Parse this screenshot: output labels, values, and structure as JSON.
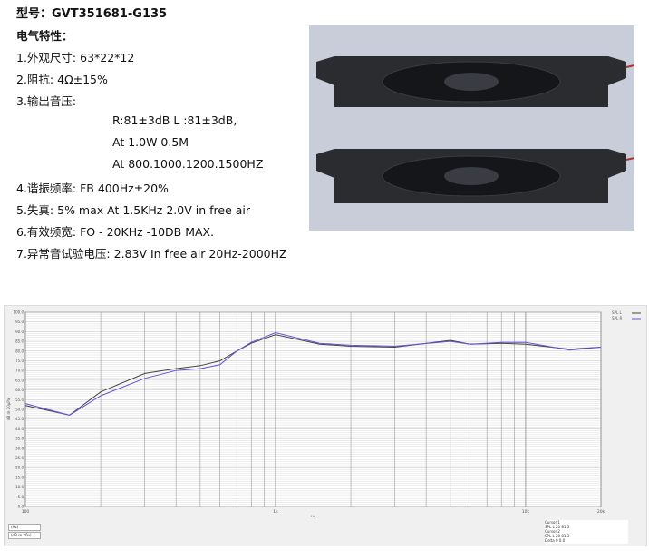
{
  "spec": {
    "model": "型号：GVT351681-G135",
    "heading": "电气特性：",
    "items": [
      "1.外观尺寸: 63*22*12",
      "2.阻抗: 4Ω±15%",
      "3.输出音压:",
      "R:81±3dB   L :81±3dB,",
      "At 1.0W 0.5M",
      "At 800.1000.1200.1500HZ",
      "4.谐振频率: FB 400Hz±20%",
      "5.失真: 5% max At 1.5KHz 2.0V in free air",
      "6.有效频宽: FO - 20KHz -10DB MAX.",
      "7.异常音试验电压: 2.83V In free air 20Hz-2000HZ"
    ]
  },
  "chart_data": {
    "type": "line",
    "xscale": "log",
    "xlim": [
      100,
      20000
    ],
    "ylim": [
      0,
      100
    ],
    "xticks": [
      "100",
      "1k",
      "10k",
      "20k"
    ],
    "xlabel": "Hz",
    "ylabel": "dB re 20µPa",
    "yticks": [
      "0.0",
      "5.0",
      "10.0",
      "15.0",
      "20.0",
      "25.0",
      "30.0",
      "35.0",
      "40.0",
      "45.0",
      "50.0",
      "55.0",
      "60.0",
      "65.0",
      "70.0",
      "75.0",
      "80.0",
      "85.0",
      "90.0",
      "95.0",
      "100.0"
    ],
    "grid": true,
    "x": [
      100,
      150,
      200,
      300,
      400,
      500,
      600,
      700,
      800,
      1000,
      1500,
      2000,
      3000,
      5000,
      6000,
      8000,
      10000,
      15000,
      20000
    ],
    "series": [
      {
        "name": "SPL L",
        "color": "#444444",
        "values": [
          52,
          47,
          59,
          68.5,
          71,
          72.5,
          75,
          80,
          84,
          88.5,
          83.5,
          82.5,
          82,
          85.5,
          83.5,
          84,
          83.5,
          81,
          82
        ]
      },
      {
        "name": "SPL R",
        "color": "#6a4fd6",
        "values": [
          53,
          47,
          57,
          66,
          70,
          71,
          73,
          80,
          84.5,
          89.5,
          84,
          83,
          82.5,
          85,
          83.5,
          84.5,
          84.5,
          80.5,
          82
        ]
      }
    ],
    "legend_labels": [
      "SPL L",
      "SPL R"
    ]
  },
  "controls": {
    "unit": "(Hz)",
    "ref": "(dB re 20u)"
  },
  "cursor": {
    "rows": [
      "Cursor 1",
      "SPL L  20  81.3",
      "Cursor 2",
      "SPL L  20  81.3",
      "Delta  0  0.0"
    ]
  }
}
